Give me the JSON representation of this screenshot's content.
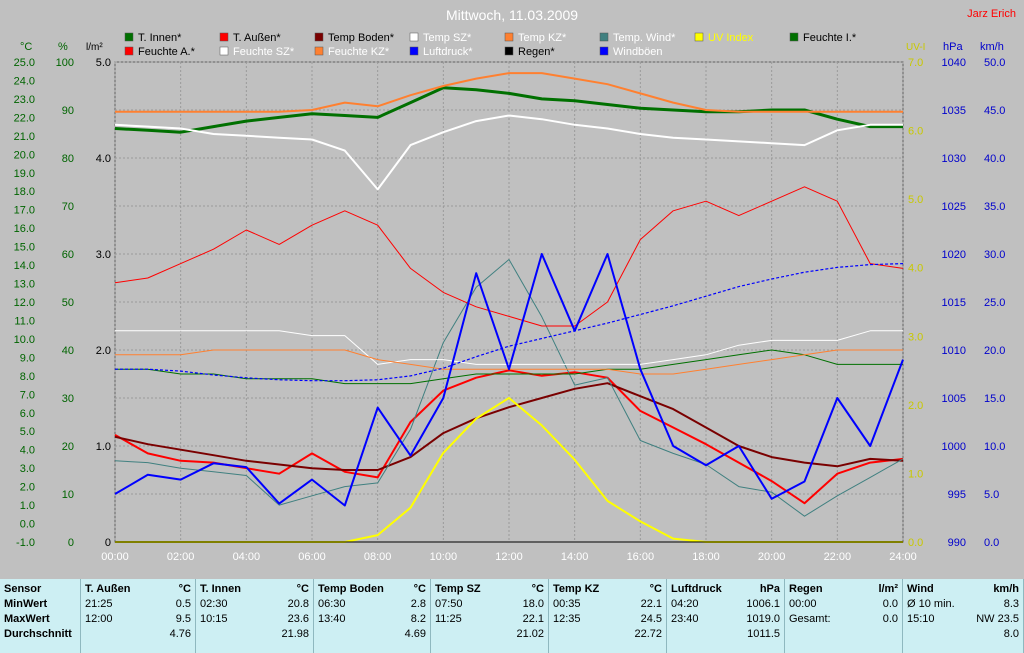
{
  "title": "Mittwoch, 11.03.2009",
  "author": "Jarz Erich",
  "colors": {
    "bg": "#c0c0c0",
    "plot_bg": "#c0c0c0",
    "grid": "#9a9a9a",
    "green_axis": "#006400",
    "blue_axis": "#0000cc",
    "uv_axis": "#c8c800",
    "t_innen": "#007000",
    "t_aussen": "#ff0000",
    "temp_boden": "#7a0000",
    "temp_sz": "#ffffff",
    "temp_kz": "#ff8030",
    "temp_wind": "#408080",
    "uv_index": "#ffff00",
    "feuchte_i": "#007000",
    "feuchte_a": "#ff0000",
    "feuchte_sz": "#ffffff",
    "feuchte_kz": "#ff8030",
    "luftdruck": "#0000ff",
    "regen": "#000000",
    "windboeen": "#0000ff"
  },
  "legend": [
    [
      "T. Innen*",
      "T. Außen*",
      "Temp Boden*",
      "Temp SZ*",
      "Temp KZ*",
      "Temp. Wind*",
      "UV Index",
      "Feuchte I.*"
    ],
    [
      "Feuchte A.*",
      "Feuchte SZ*",
      "Feuchte KZ*",
      "Luftdruck*",
      "Regen*",
      "Windböen"
    ]
  ],
  "axes": {
    "temp": {
      "unit": "°C",
      "ticks": [
        "25.0",
        "24.0",
        "23.0",
        "22.0",
        "21.0",
        "20.0",
        "19.0",
        "18.0",
        "17.0",
        "16.0",
        "15.0",
        "14.0",
        "13.0",
        "12.0",
        "11.0",
        "10.0",
        "9.0",
        "8.0",
        "7.0",
        "6.0",
        "5.0",
        "4.0",
        "3.0",
        "2.0",
        "1.0",
        "0.0",
        "-1.0"
      ]
    },
    "humidity": {
      "unit": "%",
      "ticks": [
        "100",
        "90",
        "80",
        "70",
        "60",
        "50",
        "40",
        "30",
        "20",
        "10",
        "0"
      ]
    },
    "rain": {
      "unit": "l/m²",
      "ticks": [
        "5.0",
        "4.0",
        "3.0",
        "2.0",
        "1.0",
        "0"
      ]
    },
    "uv": {
      "unit": "UV-I",
      "ticks": [
        "7.0",
        "6.0",
        "5.0",
        "4.0",
        "3.0",
        "2.0",
        "1.0",
        "0.0"
      ]
    },
    "pressure": {
      "unit": "hPa",
      "ticks": [
        "1040",
        "1035",
        "1030",
        "1025",
        "1020",
        "1015",
        "1010",
        "1005",
        "1000",
        "995",
        "990"
      ]
    },
    "wind": {
      "unit": "km/h",
      "ticks": [
        "50.0",
        "45.0",
        "40.0",
        "35.0",
        "30.0",
        "25.0",
        "20.0",
        "15.0",
        "10.0",
        "5.0",
        "0.0"
      ]
    },
    "time": {
      "ticks": [
        "00:00",
        "02:00",
        "04:00",
        "06:00",
        "08:00",
        "10:00",
        "12:00",
        "14:00",
        "16:00",
        "18:00",
        "20:00",
        "22:00",
        "24:00"
      ]
    }
  },
  "chart_data": {
    "type": "line",
    "title": "Mittwoch, 11.03.2009",
    "x": [
      0,
      1,
      2,
      3,
      4,
      5,
      6,
      7,
      8,
      9,
      10,
      11,
      12,
      13,
      14,
      15,
      16,
      17,
      18,
      19,
      20,
      21,
      22,
      23,
      24
    ],
    "xlim": [
      0,
      24
    ],
    "ylim_temp": [
      -1,
      25
    ],
    "ylim_humidity": [
      0,
      100
    ],
    "ylim_pressure": [
      990,
      1040
    ],
    "ylim_wind": [
      0,
      50
    ],
    "ylim_uv": [
      0,
      7
    ],
    "ylim_rain": [
      0,
      5
    ],
    "series": [
      {
        "name": "T. Innen*",
        "axis": "temp",
        "values": [
          21.4,
          21.3,
          21.2,
          21.5,
          21.8,
          22.0,
          22.2,
          22.1,
          22.0,
          22.8,
          23.6,
          23.5,
          23.3,
          23.0,
          22.9,
          22.7,
          22.5,
          22.4,
          22.3,
          22.3,
          22.4,
          22.4,
          21.9,
          21.5,
          21.5
        ]
      },
      {
        "name": "T. Außen*",
        "axis": "temp",
        "values": [
          4.8,
          3.8,
          3.4,
          3.3,
          3.0,
          2.7,
          3.8,
          2.8,
          2.5,
          5.5,
          7.2,
          7.9,
          8.3,
          8.0,
          8.2,
          7.9,
          6.1,
          5.2,
          4.3,
          3.3,
          2.3,
          1.1,
          2.7,
          3.3,
          3.5
        ]
      },
      {
        "name": "Temp Boden*",
        "axis": "temp",
        "values": [
          4.7,
          4.3,
          4.0,
          3.7,
          3.4,
          3.2,
          3.0,
          2.9,
          2.9,
          3.6,
          4.9,
          5.7,
          6.3,
          6.8,
          7.3,
          7.6,
          6.9,
          6.2,
          5.2,
          4.2,
          3.6,
          3.3,
          3.1,
          3.5,
          3.4
        ]
      },
      {
        "name": "Temp SZ*",
        "axis": "temp",
        "values": [
          21.6,
          21.5,
          21.4,
          21.1,
          21.0,
          20.9,
          20.8,
          20.2,
          18.1,
          20.5,
          21.2,
          21.8,
          22.1,
          21.9,
          21.6,
          21.4,
          21.1,
          20.9,
          20.8,
          20.7,
          20.6,
          20.5,
          21.3,
          21.6,
          21.6
        ]
      },
      {
        "name": "Temp KZ*",
        "axis": "temp",
        "values": [
          22.3,
          22.3,
          22.3,
          22.3,
          22.3,
          22.3,
          22.4,
          22.8,
          22.6,
          23.2,
          23.7,
          24.1,
          24.4,
          24.4,
          24.1,
          23.8,
          23.3,
          22.8,
          22.4,
          22.3,
          22.3,
          22.3,
          22.3,
          22.3,
          22.3
        ]
      },
      {
        "name": "Temp. Wind*",
        "axis": "temp",
        "values": [
          3.4,
          3.3,
          3.0,
          2.8,
          2.6,
          1.0,
          1.5,
          2.0,
          2.2,
          5.1,
          9.8,
          12.8,
          14.3,
          11.2,
          7.5,
          7.9,
          4.5,
          3.8,
          3.2,
          2.0,
          1.7,
          0.4,
          1.5,
          2.5,
          3.5
        ]
      },
      {
        "name": "Feuchte I.*",
        "axis": "humidity",
        "values": [
          36,
          36,
          35,
          35,
          34,
          34,
          34,
          33,
          33,
          33,
          34,
          35,
          35,
          35,
          35,
          36,
          36,
          37,
          38,
          39,
          40,
          39,
          37,
          37,
          37
        ]
      },
      {
        "name": "Feuchte A.*",
        "axis": "humidity",
        "values": [
          54,
          55,
          58,
          61,
          65,
          62,
          66,
          69,
          66,
          57,
          52,
          49,
          47,
          45,
          45,
          50,
          63,
          69,
          71,
          68,
          71,
          74,
          71,
          58,
          57
        ]
      },
      {
        "name": "Feuchte SZ*",
        "axis": "humidity",
        "values": [
          44,
          44,
          44,
          44,
          44,
          44,
          43,
          43,
          37,
          38,
          38,
          37,
          37,
          37,
          37,
          37,
          37,
          38,
          39,
          41,
          42,
          42,
          42,
          44,
          44
        ]
      },
      {
        "name": "Feuchte KZ*",
        "axis": "humidity",
        "values": [
          39,
          39,
          39,
          40,
          40,
          40,
          40,
          40,
          38,
          37,
          36,
          36,
          36,
          36,
          36,
          36,
          35,
          35,
          36,
          37,
          38,
          39,
          40,
          40,
          40
        ]
      },
      {
        "name": "Luftdruck*",
        "axis": "pressure",
        "values": [
          1008.0,
          1008.0,
          1007.8,
          1007.4,
          1007.1,
          1006.9,
          1006.8,
          1006.8,
          1006.9,
          1007.3,
          1008.1,
          1009.3,
          1010.4,
          1011.2,
          1012.0,
          1012.8,
          1013.7,
          1014.6,
          1015.6,
          1016.6,
          1017.4,
          1018.1,
          1018.6,
          1018.9,
          1019.0
        ]
      },
      {
        "name": "Windböen",
        "axis": "wind",
        "values": [
          5.0,
          7.0,
          6.5,
          8.2,
          7.8,
          4.0,
          6.5,
          3.8,
          14.0,
          9.0,
          15.0,
          28.0,
          18.0,
          30.0,
          22.0,
          30.0,
          18.0,
          10.0,
          8.0,
          10.0,
          4.5,
          6.3,
          15.0,
          10.0,
          19.0
        ]
      },
      {
        "name": "UV Index",
        "axis": "uv",
        "values": [
          0,
          0,
          0,
          0,
          0,
          0,
          0,
          0,
          0.1,
          0.5,
          1.3,
          1.8,
          2.1,
          1.7,
          1.2,
          0.6,
          0.3,
          0.05,
          0,
          0,
          0,
          0,
          0,
          0,
          0
        ]
      },
      {
        "name": "Regen*",
        "axis": "rain",
        "values": [
          0,
          0,
          0,
          0,
          0,
          0,
          0,
          0,
          0,
          0,
          0,
          0,
          0,
          0,
          0,
          0,
          0,
          0,
          0,
          0,
          0,
          0,
          0,
          0,
          0
        ]
      }
    ]
  },
  "stats": {
    "row_labels": {
      "sensor": "Sensor",
      "min": "MinWert",
      "max": "MaxWert",
      "avg": "Durchschnitt"
    },
    "blocks": [
      {
        "title": "T. Außen",
        "unit": "°C",
        "min_time": "21:25",
        "min_val": "0.5",
        "max_time": "12:00",
        "max_val": "9.5",
        "avg": "4.76"
      },
      {
        "title": "T. Innen",
        "unit": "°C",
        "min_time": "02:30",
        "min_val": "20.8",
        "max_time": "10:15",
        "max_val": "23.6",
        "avg": "21.98"
      },
      {
        "title": "Temp Boden",
        "unit": "°C",
        "min_time": "06:30",
        "min_val": "2.8",
        "max_time": "13:40",
        "max_val": "8.2",
        "avg": "4.69"
      },
      {
        "title": "Temp SZ",
        "unit": "°C",
        "min_time": "07:50",
        "min_val": "18.0",
        "max_time": "11:25",
        "max_val": "22.1",
        "avg": "21.02"
      },
      {
        "title": "Temp KZ",
        "unit": "°C",
        "min_time": "00:35",
        "min_val": "22.1",
        "max_time": "12:35",
        "max_val": "24.5",
        "avg": "22.72"
      },
      {
        "title": "Luftdruck",
        "unit": "hPa",
        "min_time": "04:20",
        "min_val": "1006.1",
        "max_time": "23:40",
        "max_val": "1019.0",
        "avg": "1011.5"
      },
      {
        "title": "Regen",
        "unit": "l/m²",
        "min_time": "00:00",
        "min_val": "0.0",
        "max_time": "Gesamt:",
        "max_val": "0.0",
        "avg": ""
      },
      {
        "title": "Wind",
        "unit": "km/h",
        "min_time": "Ø 10 min.",
        "min_val": "8.3",
        "max_time": "15:10",
        "max_val": "NW 23.5",
        "avg": "8.0"
      }
    ]
  }
}
